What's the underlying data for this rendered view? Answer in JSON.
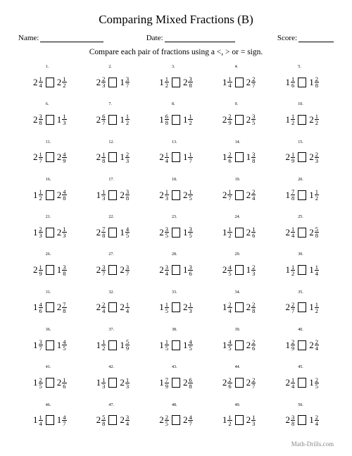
{
  "title": "Comparing Mixed Fractions (B)",
  "header": {
    "nameLabel": "Name:",
    "dateLabel": "Date:",
    "scoreLabel": "Score:",
    "nameWidth": 90,
    "dateWidth": 100,
    "scoreWidth": 50
  },
  "instructions": "Compare each pair of fractions using a <, > or = sign.",
  "footer": "Math-Drills.com",
  "problems": [
    {
      "n": 1,
      "a": {
        "w": 2,
        "n": 1,
        "d": 4
      },
      "b": {
        "w": 2,
        "n": 1,
        "d": 2
      }
    },
    {
      "n": 2,
      "a": {
        "w": 2,
        "n": 2,
        "d": 3
      },
      "b": {
        "w": 1,
        "n": 3,
        "d": 7
      }
    },
    {
      "n": 3,
      "a": {
        "w": 1,
        "n": 1,
        "d": 2
      },
      "b": {
        "w": 2,
        "n": 3,
        "d": 8
      }
    },
    {
      "n": 4,
      "a": {
        "w": 1,
        "n": 1,
        "d": 4
      },
      "b": {
        "w": 2,
        "n": 2,
        "d": 7
      }
    },
    {
      "n": 5,
      "a": {
        "w": 1,
        "n": 1,
        "d": 6
      },
      "b": {
        "w": 1,
        "n": 2,
        "d": 8
      }
    },
    {
      "n": 6,
      "a": {
        "w": 2,
        "n": 3,
        "d": 8
      },
      "b": {
        "w": 1,
        "n": 1,
        "d": 3
      }
    },
    {
      "n": 7,
      "a": {
        "w": 2,
        "n": 6,
        "d": 7
      },
      "b": {
        "w": 1,
        "n": 1,
        "d": 2
      }
    },
    {
      "n": 8,
      "a": {
        "w": 1,
        "n": 6,
        "d": 8
      },
      "b": {
        "w": 1,
        "n": 1,
        "d": 2
      }
    },
    {
      "n": 9,
      "a": {
        "w": 2,
        "n": 2,
        "d": 9
      },
      "b": {
        "w": 2,
        "n": 3,
        "d": 5
      }
    },
    {
      "n": 10,
      "a": {
        "w": 1,
        "n": 1,
        "d": 2
      },
      "b": {
        "w": 2,
        "n": 1,
        "d": 2
      }
    },
    {
      "n": 11,
      "a": {
        "w": 2,
        "n": 1,
        "d": 7
      },
      "b": {
        "w": 2,
        "n": 4,
        "d": 9
      }
    },
    {
      "n": 12,
      "a": {
        "w": 2,
        "n": 1,
        "d": 8
      },
      "b": {
        "w": 1,
        "n": 2,
        "d": 3
      }
    },
    {
      "n": 13,
      "a": {
        "w": 2,
        "n": 1,
        "d": 4
      },
      "b": {
        "w": 1,
        "n": 1,
        "d": 7
      }
    },
    {
      "n": 14,
      "a": {
        "w": 1,
        "n": 2,
        "d": 6
      },
      "b": {
        "w": 1,
        "n": 3,
        "d": 8
      }
    },
    {
      "n": 15,
      "a": {
        "w": 2,
        "n": 1,
        "d": 9
      },
      "b": {
        "w": 2,
        "n": 2,
        "d": 3
      }
    },
    {
      "n": 16,
      "a": {
        "w": 1,
        "n": 1,
        "d": 2
      },
      "b": {
        "w": 2,
        "n": 4,
        "d": 8
      }
    },
    {
      "n": 17,
      "a": {
        "w": 1,
        "n": 1,
        "d": 3
      },
      "b": {
        "w": 2,
        "n": 3,
        "d": 8
      }
    },
    {
      "n": 18,
      "a": {
        "w": 2,
        "n": 1,
        "d": 3
      },
      "b": {
        "w": 2,
        "n": 1,
        "d": 5
      }
    },
    {
      "n": 19,
      "a": {
        "w": 2,
        "n": 1,
        "d": 7
      },
      "b": {
        "w": 2,
        "n": 2,
        "d": 4
      }
    },
    {
      "n": 20,
      "a": {
        "w": 1,
        "n": 7,
        "d": 8
      },
      "b": {
        "w": 1,
        "n": 1,
        "d": 2
      }
    },
    {
      "n": 21,
      "a": {
        "w": 1,
        "n": 2,
        "d": 3
      },
      "b": {
        "w": 2,
        "n": 1,
        "d": 3
      }
    },
    {
      "n": 22,
      "a": {
        "w": 2,
        "n": 7,
        "d": 8
      },
      "b": {
        "w": 1,
        "n": 4,
        "d": 5
      }
    },
    {
      "n": 23,
      "a": {
        "w": 2,
        "n": 3,
        "d": 5
      },
      "b": {
        "w": 1,
        "n": 3,
        "d": 5
      }
    },
    {
      "n": 24,
      "a": {
        "w": 1,
        "n": 1,
        "d": 2
      },
      "b": {
        "w": 2,
        "n": 1,
        "d": 6
      }
    },
    {
      "n": 25,
      "a": {
        "w": 2,
        "n": 1,
        "d": 4
      },
      "b": {
        "w": 2,
        "n": 5,
        "d": 8
      }
    },
    {
      "n": 26,
      "a": {
        "w": 2,
        "n": 1,
        "d": 9
      },
      "b": {
        "w": 1,
        "n": 3,
        "d": 8
      }
    },
    {
      "n": 27,
      "a": {
        "w": 2,
        "n": 3,
        "d": 7
      },
      "b": {
        "w": 2,
        "n": 3,
        "d": 7
      }
    },
    {
      "n": 28,
      "a": {
        "w": 2,
        "n": 3,
        "d": 4
      },
      "b": {
        "w": 1,
        "n": 3,
        "d": 6
      }
    },
    {
      "n": 29,
      "a": {
        "w": 2,
        "n": 4,
        "d": 5
      },
      "b": {
        "w": 1,
        "n": 2,
        "d": 3
      }
    },
    {
      "n": 30,
      "a": {
        "w": 1,
        "n": 1,
        "d": 2
      },
      "b": {
        "w": 1,
        "n": 1,
        "d": 4
      }
    },
    {
      "n": 31,
      "a": {
        "w": 1,
        "n": 4,
        "d": 6
      },
      "b": {
        "w": 2,
        "n": 7,
        "d": 8
      }
    },
    {
      "n": 32,
      "a": {
        "w": 2,
        "n": 2,
        "d": 4
      },
      "b": {
        "w": 2,
        "n": 1,
        "d": 4
      }
    },
    {
      "n": 33,
      "a": {
        "w": 1,
        "n": 1,
        "d": 5
      },
      "b": {
        "w": 2,
        "n": 1,
        "d": 3
      }
    },
    {
      "n": 34,
      "a": {
        "w": 1,
        "n": 2,
        "d": 4
      },
      "b": {
        "w": 2,
        "n": 2,
        "d": 8
      }
    },
    {
      "n": 35,
      "a": {
        "w": 2,
        "n": 2,
        "d": 7
      },
      "b": {
        "w": 1,
        "n": 1,
        "d": 2
      }
    },
    {
      "n": 36,
      "a": {
        "w": 1,
        "n": 3,
        "d": 7
      },
      "b": {
        "w": 1,
        "n": 4,
        "d": 5
      }
    },
    {
      "n": 37,
      "a": {
        "w": 1,
        "n": 1,
        "d": 2
      },
      "b": {
        "w": 1,
        "n": 5,
        "d": 9
      }
    },
    {
      "n": 38,
      "a": {
        "w": 1,
        "n": 1,
        "d": 5
      },
      "b": {
        "w": 1,
        "n": 4,
        "d": 5
      }
    },
    {
      "n": 39,
      "a": {
        "w": 1,
        "n": 4,
        "d": 5
      },
      "b": {
        "w": 2,
        "n": 2,
        "d": 6
      }
    },
    {
      "n": 40,
      "a": {
        "w": 1,
        "n": 2,
        "d": 9
      },
      "b": {
        "w": 2,
        "n": 2,
        "d": 4
      }
    },
    {
      "n": 41,
      "a": {
        "w": 1,
        "n": 2,
        "d": 5
      },
      "b": {
        "w": 2,
        "n": 1,
        "d": 6
      }
    },
    {
      "n": 42,
      "a": {
        "w": 1,
        "n": 1,
        "d": 3
      },
      "b": {
        "w": 2,
        "n": 1,
        "d": 3
      }
    },
    {
      "n": 43,
      "a": {
        "w": 1,
        "n": 7,
        "d": 9
      },
      "b": {
        "w": 2,
        "n": 6,
        "d": 8
      }
    },
    {
      "n": 44,
      "a": {
        "w": 2,
        "n": 2,
        "d": 6
      },
      "b": {
        "w": 2,
        "n": 2,
        "d": 7
      }
    },
    {
      "n": 45,
      "a": {
        "w": 2,
        "n": 1,
        "d": 4
      },
      "b": {
        "w": 1,
        "n": 2,
        "d": 5
      }
    },
    {
      "n": 46,
      "a": {
        "w": 1,
        "n": 1,
        "d": 4
      },
      "b": {
        "w": 1,
        "n": 4,
        "d": 7
      }
    },
    {
      "n": 47,
      "a": {
        "w": 2,
        "n": 5,
        "d": 8
      },
      "b": {
        "w": 2,
        "n": 3,
        "d": 4
      }
    },
    {
      "n": 48,
      "a": {
        "w": 2,
        "n": 2,
        "d": 5
      },
      "b": {
        "w": 2,
        "n": 4,
        "d": 7
      }
    },
    {
      "n": 49,
      "a": {
        "w": 1,
        "n": 1,
        "d": 2
      },
      "b": {
        "w": 2,
        "n": 1,
        "d": 3
      }
    },
    {
      "n": 50,
      "a": {
        "w": 2,
        "n": 3,
        "d": 8
      },
      "b": {
        "w": 1,
        "n": 2,
        "d": 4
      }
    }
  ]
}
